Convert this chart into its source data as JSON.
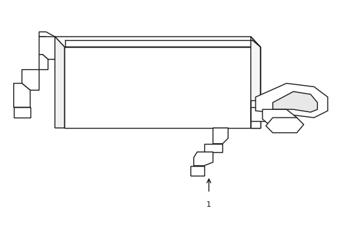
{
  "background_color": "#ffffff",
  "line_color": "#1a1a1a",
  "line_width": 1.0,
  "fig_width": 4.89,
  "fig_height": 3.6,
  "dpi": 100,
  "label_text": "1",
  "label_fontsize": 8
}
